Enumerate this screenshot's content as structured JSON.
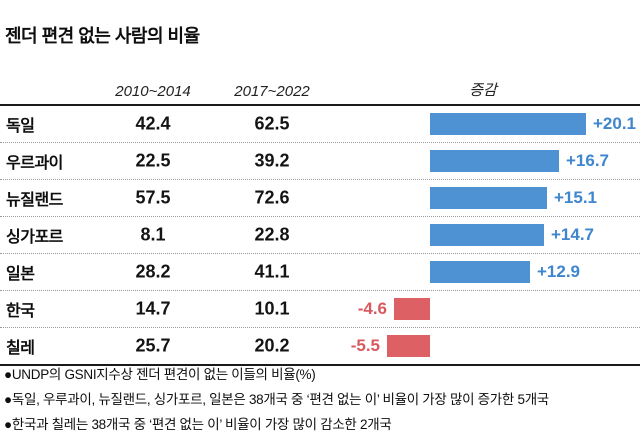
{
  "title": "젠더 편견 없는 사람의 비율",
  "header": {
    "col1": "2010~2014",
    "col2": "2017~2022",
    "col3": "증감"
  },
  "rows": [
    {
      "country": "독일",
      "v1": "42.4",
      "v2": "62.5",
      "change": 20.1,
      "change_label": "+20.1"
    },
    {
      "country": "우르과이",
      "v1": "22.5",
      "v2": "39.2",
      "change": 16.7,
      "change_label": "+16.7"
    },
    {
      "country": "뉴질랜드",
      "v1": "57.5",
      "v2": "72.6",
      "change": 15.1,
      "change_label": "+15.1"
    },
    {
      "country": "싱가포르",
      "v1": "8.1",
      "v2": "22.8",
      "change": 14.7,
      "change_label": "+14.7"
    },
    {
      "country": "일본",
      "v1": "28.2",
      "v2": "41.1",
      "change": 12.9,
      "change_label": "+12.9"
    },
    {
      "country": "한국",
      "v1": "14.7",
      "v2": "10.1",
      "change": -4.6,
      "change_label": "-4.6"
    },
    {
      "country": "칠레",
      "v1": "25.7",
      "v2": "20.2",
      "change": -5.5,
      "change_label": "-5.5"
    }
  ],
  "footnotes": [
    "●UNDP의 GSNI지수상 젠더 편견이 없는 이들의 비율(%)",
    "●독일, 우루과이, 뉴질랜드, 싱가포르, 일본은 38개국 중 ‘편견 없는 이’ 비율이 가장 많이 증가한 5개국",
    "●한국과 칠레는 38개국 중 ‘편견 없는 이’ 비율이 가장 많이 감소한 2개국"
  ],
  "colors": {
    "positive": "#4f92d3",
    "positive_text": "#3e86cd",
    "negative": "#dc6064",
    "negative_text": "#d95a5e",
    "rule": "#1a1a1a",
    "dotted": "#9b9b9b"
  },
  "chart_data": {
    "type": "bar",
    "title": "젠더 편견 없는 사람의 비율",
    "categories": [
      "독일",
      "우르과이",
      "뉴질랜드",
      "싱가포르",
      "일본",
      "한국",
      "칠레"
    ],
    "series": [
      {
        "name": "2010~2014",
        "values": [
          42.4,
          22.5,
          57.5,
          8.1,
          28.2,
          14.7,
          25.7
        ]
      },
      {
        "name": "2017~2022",
        "values": [
          62.5,
          39.2,
          72.6,
          22.8,
          41.1,
          10.1,
          20.2
        ]
      },
      {
        "name": "증감",
        "values": [
          20.1,
          16.7,
          15.1,
          14.7,
          12.9,
          -4.6,
          -5.5
        ]
      }
    ],
    "bar_series": "증감",
    "orientation": "horizontal",
    "xlim": [
      -6,
      27
    ],
    "grid": false,
    "legend": false,
    "annotations": [
      "UNDP의 GSNI지수상 젠더 편견이 없는 이들의 비율(%)",
      "독일, 우루과이, 뉴질랜드, 싱가포르, 일본은 38개국 중 ‘편견 없는 이’ 비율이 가장 많이 증가한 5개국",
      "한국과 칠레는 38개국 중 ‘편견 없는 이’ 비율이 가장 많이 감소한 2개국"
    ]
  }
}
